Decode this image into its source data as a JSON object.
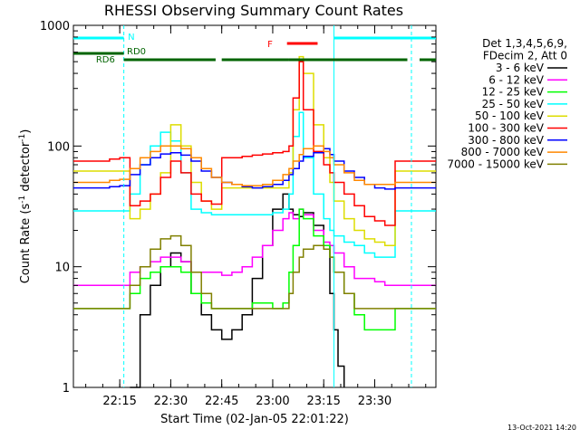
{
  "chart_data": {
    "type": "line",
    "title": "RHESSI Observing Summary Count Rates",
    "xlabel": "Start Time (02-Jan-05 22:01:22)",
    "ylabel": "Count Rate (s⁻¹ detector⁻¹)",
    "ylabel_main": "Count Rate (s",
    "ylabel_sup1": "-1",
    "ylabel_mid": " detector",
    "ylabel_sup2": "-1",
    "ylabel_end": ")",
    "y_scale": "log",
    "ylim": [
      1,
      1000
    ],
    "xlim": [
      22.0228,
      23.8
    ],
    "x_ticks": [
      {
        "value": 22.25,
        "label": "22:15"
      },
      {
        "value": 22.5,
        "label": "22:30"
      },
      {
        "value": 22.75,
        "label": "22:45"
      },
      {
        "value": 23.0,
        "label": "23:00"
      },
      {
        "value": 23.25,
        "label": "23:15"
      },
      {
        "value": 23.5,
        "label": "23:30"
      }
    ],
    "y_ticks": [
      {
        "value": 1,
        "label": "1"
      },
      {
        "value": 10,
        "label": "10"
      },
      {
        "value": 100,
        "label": "100"
      },
      {
        "value": 1000,
        "label": "1000"
      }
    ],
    "legend_header": [
      "Det 1,3,4,5,6,9,",
      "FDecim 2, Att 0"
    ],
    "legend_placement": "right",
    "footer_date": "13-Oct-2021 14:20",
    "series": [
      {
        "name": "3 - 6 keV",
        "color": "#000000",
        "x": [
          22.0228,
          22.12,
          22.22,
          22.27,
          22.3,
          22.35,
          22.4,
          22.45,
          22.5,
          22.55,
          22.6,
          22.65,
          22.7,
          22.75,
          22.8,
          22.85,
          22.9,
          22.95,
          23.0,
          23.05,
          23.08,
          23.1,
          23.13,
          23.15,
          23.2,
          23.25,
          23.28,
          23.3,
          23.32,
          23.35,
          23.4,
          23.45,
          23.5,
          23.55
        ],
        "values": [
          null,
          null,
          null,
          null,
          1,
          4,
          7,
          10,
          13,
          11,
          6,
          4,
          3,
          2.5,
          3,
          4,
          8,
          15,
          30,
          40,
          30,
          27,
          26,
          28,
          22,
          15,
          6,
          3,
          1.5,
          1,
          null,
          null,
          null,
          null
        ]
      },
      {
        "name": "6 - 12 keV",
        "color": "#ff00ff",
        "x": [
          22.0228,
          22.1,
          22.2,
          22.25,
          22.3,
          22.35,
          22.4,
          22.45,
          22.5,
          22.55,
          22.6,
          22.65,
          22.7,
          22.75,
          22.8,
          22.85,
          22.9,
          22.95,
          23.0,
          23.05,
          23.08,
          23.1,
          23.13,
          23.15,
          23.2,
          23.25,
          23.28,
          23.3,
          23.35,
          23.4,
          23.45,
          23.5,
          23.55,
          23.6,
          23.65,
          23.7
        ],
        "values": [
          7,
          7,
          7,
          7,
          9,
          10,
          11,
          12,
          12,
          11,
          9,
          9,
          9,
          8.5,
          9,
          10,
          12,
          15,
          20,
          25,
          28,
          25,
          30,
          27,
          20,
          16,
          15,
          13,
          10,
          8,
          8,
          7.5,
          7,
          7,
          7,
          7
        ]
      },
      {
        "name": "12 - 25 keV",
        "color": "#00ff00",
        "x": [
          22.0228,
          22.1,
          22.2,
          22.25,
          22.3,
          22.35,
          22.4,
          22.45,
          22.5,
          22.55,
          22.6,
          22.65,
          22.7,
          22.75,
          22.8,
          22.85,
          22.9,
          22.95,
          23.0,
          23.05,
          23.08,
          23.1,
          23.13,
          23.15,
          23.2,
          23.25,
          23.28,
          23.3,
          23.35,
          23.4,
          23.45,
          23.5,
          23.55,
          23.6,
          23.65,
          23.7
        ],
        "values": [
          4.5,
          4.5,
          4.5,
          4.5,
          6,
          8,
          9,
          10,
          10,
          9,
          6,
          5,
          4.5,
          4.5,
          4.5,
          4.5,
          5,
          5,
          4.5,
          5,
          9,
          15,
          30,
          25,
          18,
          15,
          12,
          9,
          6,
          4,
          3,
          3,
          3,
          4.5,
          4.5,
          4.5
        ]
      },
      {
        "name": "25 - 50 keV",
        "color": "#00ffff",
        "x": [
          22.0228,
          22.1,
          22.2,
          22.25,
          22.3,
          22.35,
          22.4,
          22.45,
          22.5,
          22.55,
          22.6,
          22.65,
          22.7,
          22.75,
          22.8,
          22.85,
          22.9,
          22.95,
          23.0,
          23.05,
          23.08,
          23.1,
          23.13,
          23.15,
          23.2,
          23.25,
          23.28,
          23.3,
          23.35,
          23.4,
          23.45,
          23.5,
          23.55,
          23.6,
          23.65,
          23.7
        ],
        "values": [
          29,
          29,
          29,
          29,
          40,
          70,
          100,
          130,
          110,
          60,
          30,
          28,
          27,
          27,
          27,
          27,
          27,
          27,
          28,
          30,
          40,
          120,
          190,
          80,
          40,
          25,
          20,
          18,
          16,
          15,
          13,
          12,
          12,
          29,
          29,
          29
        ]
      },
      {
        "name": "50 - 100 keV",
        "color": "#dddd00",
        "x": [
          22.0228,
          22.1,
          22.2,
          22.25,
          22.3,
          22.35,
          22.4,
          22.45,
          22.5,
          22.55,
          22.6,
          22.65,
          22.7,
          22.75,
          22.8,
          22.85,
          22.9,
          22.95,
          23.0,
          23.05,
          23.08,
          23.1,
          23.13,
          23.15,
          23.2,
          23.25,
          23.28,
          23.3,
          23.35,
          23.4,
          23.45,
          23.5,
          23.55,
          23.6,
          23.65,
          23.7
        ],
        "values": [
          62,
          62,
          62,
          62,
          25,
          30,
          40,
          60,
          150,
          100,
          50,
          35,
          30,
          45,
          45,
          45,
          45,
          45,
          45,
          45,
          60,
          200,
          550,
          400,
          150,
          80,
          50,
          35,
          25,
          20,
          17,
          16,
          15,
          62,
          62,
          62
        ]
      },
      {
        "name": "100 - 300 keV",
        "color": "#ff0000",
        "x": [
          22.0228,
          22.1,
          22.2,
          22.25,
          22.3,
          22.35,
          22.4,
          22.45,
          22.5,
          22.55,
          22.6,
          22.65,
          22.7,
          22.75,
          22.8,
          22.85,
          22.9,
          22.95,
          23.0,
          23.05,
          23.08,
          23.1,
          23.13,
          23.15,
          23.2,
          23.25,
          23.28,
          23.3,
          23.35,
          23.4,
          23.45,
          23.5,
          23.55,
          23.6,
          23.65,
          23.7
        ],
        "values": [
          75,
          75,
          78,
          80,
          32,
          35,
          40,
          55,
          75,
          60,
          40,
          35,
          33,
          80,
          80,
          82,
          84,
          86,
          88,
          90,
          100,
          250,
          500,
          200,
          90,
          70,
          60,
          50,
          40,
          32,
          26,
          24,
          22,
          75,
          75,
          75
        ]
      },
      {
        "name": "300 - 800 keV",
        "color": "#0000ff",
        "x": [
          22.0228,
          22.1,
          22.2,
          22.25,
          22.3,
          22.35,
          22.4,
          22.45,
          22.5,
          22.55,
          22.6,
          22.65,
          22.7,
          22.75,
          22.8,
          22.85,
          22.9,
          22.95,
          23.0,
          23.05,
          23.08,
          23.1,
          23.13,
          23.15,
          23.2,
          23.25,
          23.28,
          23.3,
          23.35,
          23.4,
          23.45,
          23.5,
          23.55,
          23.6,
          23.65,
          23.7
        ],
        "values": [
          45,
          45,
          46,
          47,
          58,
          70,
          80,
          86,
          88,
          84,
          75,
          62,
          55,
          50,
          48,
          46,
          45,
          46,
          48,
          52,
          58,
          65,
          75,
          82,
          88,
          95,
          85,
          75,
          62,
          55,
          48,
          45,
          44,
          45,
          45,
          45
        ]
      },
      {
        "name": "800 - 7000 keV",
        "color": "#ff8800",
        "x": [
          22.0228,
          22.1,
          22.2,
          22.25,
          22.3,
          22.35,
          22.4,
          22.45,
          22.5,
          22.55,
          22.6,
          22.65,
          22.7,
          22.75,
          22.8,
          22.85,
          22.9,
          22.95,
          23.0,
          23.05,
          23.08,
          23.1,
          23.13,
          23.15,
          23.2,
          23.25,
          23.28,
          23.3,
          23.35,
          23.4,
          23.45,
          23.5,
          23.55,
          23.6,
          23.65,
          23.7
        ],
        "values": [
          50,
          50,
          52,
          53,
          65,
          80,
          90,
          100,
          100,
          95,
          80,
          65,
          55,
          50,
          48,
          47,
          47,
          48,
          52,
          58,
          65,
          75,
          85,
          95,
          100,
          90,
          80,
          70,
          60,
          52,
          48,
          48,
          48,
          50,
          50,
          50
        ]
      },
      {
        "name": "7000 - 15000 keV",
        "color": "#808000",
        "x": [
          22.0228,
          22.1,
          22.2,
          22.25,
          22.3,
          22.35,
          22.4,
          22.45,
          22.5,
          22.55,
          22.6,
          22.65,
          22.7,
          22.75,
          22.8,
          22.85,
          22.9,
          22.95,
          23.0,
          23.05,
          23.08,
          23.1,
          23.13,
          23.15,
          23.2,
          23.25,
          23.28,
          23.3,
          23.35,
          23.4,
          23.45,
          23.5,
          23.55,
          23.6,
          23.65,
          23.7
        ],
        "values": [
          4.5,
          4.5,
          4.5,
          4.5,
          7,
          10,
          14,
          17,
          18,
          15,
          9,
          6,
          4.5,
          4.5,
          4.5,
          4.5,
          4.5,
          4.5,
          4.5,
          4.5,
          6,
          9,
          12,
          14,
          15,
          14,
          12,
          9,
          6,
          4.5,
          4.5,
          4.5,
          4.5,
          4.5,
          4.5,
          4.5
        ]
      }
    ],
    "annotations": [
      {
        "label": "N",
        "color": "#00ffff",
        "segments": [
          [
            22.0228,
            22.27
          ],
          [
            23.3,
            23.8
          ]
        ]
      },
      {
        "label": "F",
        "color": "#ff0000",
        "segments": [
          [
            23.07,
            23.22
          ]
        ]
      },
      {
        "label": "RD0",
        "color": "#006400",
        "segments": [
          [
            22.27,
            22.72
          ],
          [
            22.75,
            23.08
          ],
          [
            23.08,
            23.66
          ],
          [
            23.72,
            23.8
          ]
        ]
      },
      {
        "label": "RD6",
        "color": "#006400",
        "segments": [
          [
            22.0228,
            22.27
          ]
        ]
      }
    ],
    "vertical_markers": [
      {
        "x": 22.27,
        "color": "#00ffff",
        "dashed": true
      },
      {
        "x": 23.3,
        "color": "#00ffff",
        "dashed": false
      },
      {
        "x": 23.68,
        "color": "#00ffff",
        "dashed": true
      }
    ]
  }
}
